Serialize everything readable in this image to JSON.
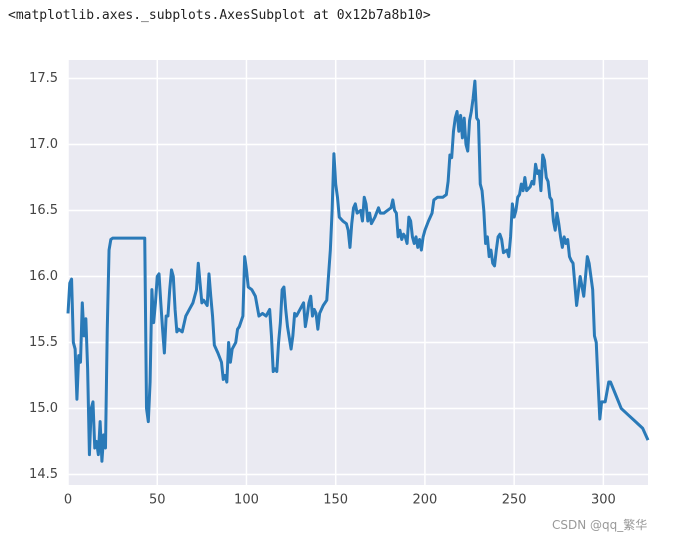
{
  "header": "<matplotlib.axes._subplots.AxesSubplot at 0x12b7a8b10>",
  "watermark": "CSDN @qq_繁华",
  "chart_data": {
    "type": "line",
    "color": "#2a7ab8",
    "grid": true,
    "xlim": [
      0,
      325
    ],
    "ylim": [
      14.42,
      17.64
    ],
    "xticks": [
      0,
      50,
      100,
      150,
      200,
      250,
      300
    ],
    "yticks": [
      14.5,
      {
        "value": 15,
        "label": "15.0"
      },
      15.5,
      {
        "value": 16,
        "label": "16.0"
      },
      16.5,
      {
        "value": 17,
        "label": "17.0"
      },
      17.5
    ],
    "x": [
      0,
      1,
      2,
      3,
      4,
      5,
      6,
      7,
      8,
      9,
      10,
      11,
      12,
      13,
      14,
      15,
      16,
      17,
      18,
      19,
      20,
      21,
      22,
      23,
      24,
      25,
      30,
      35,
      40,
      43,
      44,
      45,
      46,
      47,
      48,
      49,
      50,
      51,
      52,
      53,
      54,
      55,
      56,
      57,
      58,
      59,
      60,
      61,
      62,
      64,
      66,
      68,
      70,
      72,
      73,
      74,
      75,
      76,
      78,
      79,
      80,
      81,
      82,
      84,
      86,
      87,
      88,
      89,
      90,
      91,
      92,
      94,
      95,
      96,
      98,
      99,
      100,
      101,
      103,
      105,
      107,
      109,
      111,
      113,
      114,
      115,
      116,
      117,
      118,
      119,
      120,
      121,
      122,
      123,
      125,
      126,
      127,
      128,
      130,
      132,
      133,
      134,
      135,
      136,
      137,
      138,
      139,
      140,
      141,
      143,
      145,
      147,
      148,
      149,
      150,
      151,
      152,
      154,
      156,
      157,
      158,
      159,
      160,
      161,
      162,
      164,
      165,
      166,
      167,
      168,
      169,
      170,
      172,
      174,
      175,
      177,
      179,
      181,
      182,
      183,
      184,
      185,
      186,
      187,
      188,
      189,
      190,
      191,
      192,
      193,
      194,
      195,
      196,
      197,
      198,
      199,
      200,
      202,
      204,
      205,
      207,
      210,
      212,
      213,
      214,
      215,
      216,
      217,
      218,
      219,
      220,
      221,
      222,
      223,
      224,
      225,
      226,
      227,
      228,
      229,
      230,
      231,
      232,
      233,
      234,
      235,
      236,
      237,
      238,
      239,
      240,
      241,
      242,
      243,
      244,
      246,
      247,
      248,
      249,
      250,
      251,
      252,
      253,
      254,
      255,
      256,
      257,
      259,
      260,
      261,
      262,
      263,
      264,
      265,
      266,
      267,
      268,
      269,
      270,
      271,
      272,
      273,
      274,
      275,
      276,
      277,
      278,
      279,
      280,
      281,
      282,
      283,
      285,
      287,
      289,
      291,
      292,
      294,
      295,
      296,
      297,
      298,
      299,
      301,
      303,
      304,
      307,
      310,
      314,
      318,
      322,
      325
    ],
    "values": [
      15.72,
      15.95,
      15.98,
      15.5,
      15.45,
      15.07,
      15.4,
      15.35,
      15.8,
      15.55,
      15.68,
      15.3,
      14.65,
      15.0,
      15.05,
      14.7,
      14.75,
      14.65,
      14.9,
      14.6,
      14.8,
      14.7,
      15.6,
      16.2,
      16.28,
      16.29,
      16.29,
      16.29,
      16.29,
      16.29,
      15.0,
      14.9,
      15.2,
      15.9,
      15.65,
      15.8,
      16.0,
      16.02,
      15.8,
      15.6,
      15.42,
      15.7,
      15.7,
      15.9,
      16.05,
      16.0,
      15.75,
      15.58,
      15.6,
      15.58,
      15.7,
      15.75,
      15.8,
      15.9,
      16.1,
      15.95,
      15.8,
      15.82,
      15.78,
      16.02,
      15.85,
      15.7,
      15.48,
      15.42,
      15.35,
      15.22,
      15.25,
      15.2,
      15.5,
      15.35,
      15.45,
      15.5,
      15.6,
      15.62,
      15.7,
      16.15,
      16.05,
      15.92,
      15.9,
      15.85,
      15.7,
      15.72,
      15.7,
      15.75,
      15.55,
      15.28,
      15.3,
      15.28,
      15.5,
      15.65,
      15.9,
      15.92,
      15.75,
      15.62,
      15.45,
      15.55,
      15.72,
      15.7,
      15.75,
      15.8,
      15.62,
      15.7,
      15.8,
      15.85,
      15.7,
      15.75,
      15.72,
      15.6,
      15.72,
      15.78,
      15.82,
      16.2,
      16.5,
      16.93,
      16.7,
      16.6,
      16.45,
      16.42,
      16.4,
      16.35,
      16.22,
      16.4,
      16.52,
      16.55,
      16.48,
      16.5,
      16.42,
      16.6,
      16.55,
      16.42,
      16.48,
      16.4,
      16.45,
      16.52,
      16.48,
      16.48,
      16.5,
      16.52,
      16.58,
      16.5,
      16.48,
      16.3,
      16.35,
      16.28,
      16.32,
      16.3,
      16.25,
      16.45,
      16.42,
      16.3,
      16.25,
      16.3,
      16.22,
      16.28,
      16.2,
      16.3,
      16.35,
      16.42,
      16.48,
      16.58,
      16.6,
      16.6,
      16.62,
      16.72,
      16.92,
      16.9,
      17.1,
      17.2,
      17.25,
      17.1,
      17.22,
      17.05,
      17.2,
      17.0,
      16.95,
      17.18,
      17.25,
      17.35,
      17.48,
      17.2,
      17.18,
      16.7,
      16.65,
      16.5,
      16.25,
      16.3,
      16.15,
      16.2,
      16.1,
      16.08,
      16.2,
      16.3,
      16.32,
      16.28,
      16.18,
      16.2,
      16.15,
      16.3,
      16.55,
      16.45,
      16.5,
      16.6,
      16.62,
      16.7,
      16.65,
      16.75,
      16.65,
      16.68,
      16.72,
      16.7,
      16.85,
      16.78,
      16.8,
      16.65,
      16.92,
      16.88,
      16.75,
      16.72,
      16.6,
      16.58,
      16.42,
      16.35,
      16.48,
      16.4,
      16.3,
      16.22,
      16.3,
      16.25,
      16.28,
      16.15,
      16.12,
      16.1,
      15.78,
      16.0,
      15.85,
      16.15,
      16.1,
      15.9,
      15.55,
      15.5,
      15.2,
      14.92,
      15.05,
      15.05,
      15.2,
      15.2,
      15.1,
      15.0,
      14.95,
      14.9,
      14.85,
      14.76
    ]
  }
}
